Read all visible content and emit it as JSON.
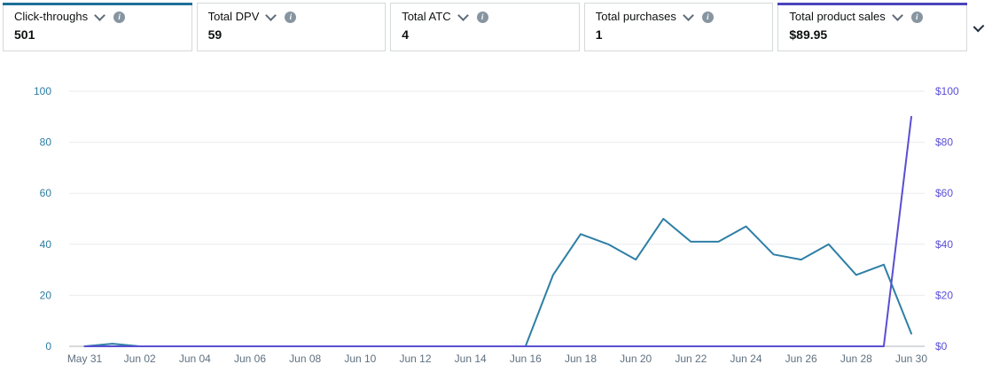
{
  "cards": {
    "items": [
      {
        "label": "Click-throughs",
        "value": "501",
        "selected": true,
        "accent_color": "#1d6f99"
      },
      {
        "label": "Total DPV",
        "value": "59",
        "selected": false,
        "accent_color": ""
      },
      {
        "label": "Total ATC",
        "value": "4",
        "selected": false,
        "accent_color": ""
      },
      {
        "label": "Total purchases",
        "value": "1",
        "selected": false,
        "accent_color": ""
      },
      {
        "label": "Total product sales",
        "value": "$89.95",
        "selected": true,
        "accent_color": "#4a44bd"
      }
    ],
    "info_glyph": "i"
  },
  "chart_data": {
    "type": "line",
    "x": [
      "May 31",
      "Jun 01",
      "Jun 02",
      "Jun 03",
      "Jun 04",
      "Jun 05",
      "Jun 06",
      "Jun 07",
      "Jun 08",
      "Jun 09",
      "Jun 10",
      "Jun 11",
      "Jun 12",
      "Jun 13",
      "Jun 14",
      "Jun 15",
      "Jun 16",
      "Jun 17",
      "Jun 18",
      "Jun 19",
      "Jun 20",
      "Jun 21",
      "Jun 22",
      "Jun 23",
      "Jun 24",
      "Jun 25",
      "Jun 26",
      "Jun 27",
      "Jun 28",
      "Jun 29",
      "Jun 30"
    ],
    "x_tick_interval": 2,
    "series": [
      {
        "name": "Click-throughs",
        "axis": "left",
        "color": "#2e7fa5",
        "values": [
          0,
          1,
          0,
          0,
          0,
          0,
          0,
          0,
          0,
          0,
          0,
          0,
          0,
          0,
          0,
          0,
          0,
          28,
          44,
          40,
          34,
          50,
          41,
          41,
          47,
          36,
          34,
          40,
          28,
          32,
          5
        ]
      },
      {
        "name": "Total product sales",
        "axis": "right",
        "color": "#5a4ed2",
        "values": [
          0,
          0,
          0,
          0,
          0,
          0,
          0,
          0,
          0,
          0,
          0,
          0,
          0,
          0,
          0,
          0,
          0,
          0,
          0,
          0,
          0,
          0,
          0,
          0,
          0,
          0,
          0,
          0,
          0,
          0,
          89.95
        ]
      }
    ],
    "left_axis": {
      "ticks": [
        "0",
        "20",
        "40",
        "60",
        "80",
        "100"
      ],
      "range": [
        0,
        100
      ],
      "color": "#2b7ca1"
    },
    "right_axis": {
      "ticks": [
        "$0",
        "$20",
        "$40",
        "$60",
        "$80",
        "$100"
      ],
      "range": [
        0,
        100
      ],
      "color": "#5b50d8"
    },
    "x_axis_color": "#5f707f",
    "gridline_color": "#e9ebee",
    "baseline_color": "#b1b5ba",
    "grid": true,
    "legend": "none",
    "title": ""
  }
}
